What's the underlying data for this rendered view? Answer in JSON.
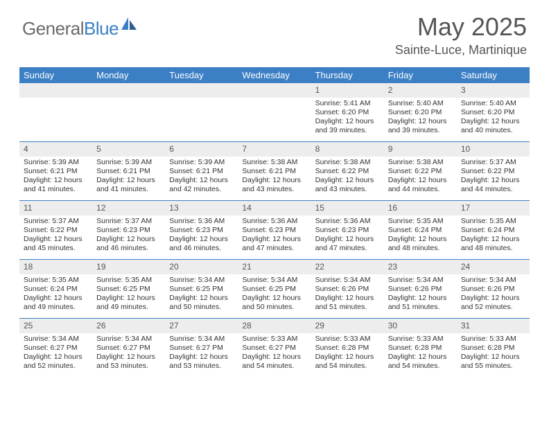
{
  "logo": {
    "text1": "General",
    "text2": "Blue"
  },
  "title": "May 2025",
  "location": "Sainte-Luce, Martinique",
  "weekdays": [
    "Sunday",
    "Monday",
    "Tuesday",
    "Wednesday",
    "Thursday",
    "Friday",
    "Saturday"
  ],
  "colors": {
    "header_blue": "#3b7fc4",
    "daynum_bg": "#ededed",
    "text_gray": "#555555",
    "body_text": "#333333"
  },
  "weeks": [
    [
      null,
      null,
      null,
      null,
      {
        "n": "1",
        "sunrise": "5:41 AM",
        "sunset": "6:20 PM",
        "daylight": "12 hours and 39 minutes."
      },
      {
        "n": "2",
        "sunrise": "5:40 AM",
        "sunset": "6:20 PM",
        "daylight": "12 hours and 39 minutes."
      },
      {
        "n": "3",
        "sunrise": "5:40 AM",
        "sunset": "6:20 PM",
        "daylight": "12 hours and 40 minutes."
      }
    ],
    [
      {
        "n": "4",
        "sunrise": "5:39 AM",
        "sunset": "6:21 PM",
        "daylight": "12 hours and 41 minutes."
      },
      {
        "n": "5",
        "sunrise": "5:39 AM",
        "sunset": "6:21 PM",
        "daylight": "12 hours and 41 minutes."
      },
      {
        "n": "6",
        "sunrise": "5:39 AM",
        "sunset": "6:21 PM",
        "daylight": "12 hours and 42 minutes."
      },
      {
        "n": "7",
        "sunrise": "5:38 AM",
        "sunset": "6:21 PM",
        "daylight": "12 hours and 43 minutes."
      },
      {
        "n": "8",
        "sunrise": "5:38 AM",
        "sunset": "6:22 PM",
        "daylight": "12 hours and 43 minutes."
      },
      {
        "n": "9",
        "sunrise": "5:38 AM",
        "sunset": "6:22 PM",
        "daylight": "12 hours and 44 minutes."
      },
      {
        "n": "10",
        "sunrise": "5:37 AM",
        "sunset": "6:22 PM",
        "daylight": "12 hours and 44 minutes."
      }
    ],
    [
      {
        "n": "11",
        "sunrise": "5:37 AM",
        "sunset": "6:22 PM",
        "daylight": "12 hours and 45 minutes."
      },
      {
        "n": "12",
        "sunrise": "5:37 AM",
        "sunset": "6:23 PM",
        "daylight": "12 hours and 46 minutes."
      },
      {
        "n": "13",
        "sunrise": "5:36 AM",
        "sunset": "6:23 PM",
        "daylight": "12 hours and 46 minutes."
      },
      {
        "n": "14",
        "sunrise": "5:36 AM",
        "sunset": "6:23 PM",
        "daylight": "12 hours and 47 minutes."
      },
      {
        "n": "15",
        "sunrise": "5:36 AM",
        "sunset": "6:23 PM",
        "daylight": "12 hours and 47 minutes."
      },
      {
        "n": "16",
        "sunrise": "5:35 AM",
        "sunset": "6:24 PM",
        "daylight": "12 hours and 48 minutes."
      },
      {
        "n": "17",
        "sunrise": "5:35 AM",
        "sunset": "6:24 PM",
        "daylight": "12 hours and 48 minutes."
      }
    ],
    [
      {
        "n": "18",
        "sunrise": "5:35 AM",
        "sunset": "6:24 PM",
        "daylight": "12 hours and 49 minutes."
      },
      {
        "n": "19",
        "sunrise": "5:35 AM",
        "sunset": "6:25 PM",
        "daylight": "12 hours and 49 minutes."
      },
      {
        "n": "20",
        "sunrise": "5:34 AM",
        "sunset": "6:25 PM",
        "daylight": "12 hours and 50 minutes."
      },
      {
        "n": "21",
        "sunrise": "5:34 AM",
        "sunset": "6:25 PM",
        "daylight": "12 hours and 50 minutes."
      },
      {
        "n": "22",
        "sunrise": "5:34 AM",
        "sunset": "6:26 PM",
        "daylight": "12 hours and 51 minutes."
      },
      {
        "n": "23",
        "sunrise": "5:34 AM",
        "sunset": "6:26 PM",
        "daylight": "12 hours and 51 minutes."
      },
      {
        "n": "24",
        "sunrise": "5:34 AM",
        "sunset": "6:26 PM",
        "daylight": "12 hours and 52 minutes."
      }
    ],
    [
      {
        "n": "25",
        "sunrise": "5:34 AM",
        "sunset": "6:27 PM",
        "daylight": "12 hours and 52 minutes."
      },
      {
        "n": "26",
        "sunrise": "5:34 AM",
        "sunset": "6:27 PM",
        "daylight": "12 hours and 53 minutes."
      },
      {
        "n": "27",
        "sunrise": "5:34 AM",
        "sunset": "6:27 PM",
        "daylight": "12 hours and 53 minutes."
      },
      {
        "n": "28",
        "sunrise": "5:33 AM",
        "sunset": "6:27 PM",
        "daylight": "12 hours and 54 minutes."
      },
      {
        "n": "29",
        "sunrise": "5:33 AM",
        "sunset": "6:28 PM",
        "daylight": "12 hours and 54 minutes."
      },
      {
        "n": "30",
        "sunrise": "5:33 AM",
        "sunset": "6:28 PM",
        "daylight": "12 hours and 54 minutes."
      },
      {
        "n": "31",
        "sunrise": "5:33 AM",
        "sunset": "6:28 PM",
        "daylight": "12 hours and 55 minutes."
      }
    ]
  ],
  "labels": {
    "sunrise": "Sunrise: ",
    "sunset": "Sunset: ",
    "daylight": "Daylight: "
  }
}
